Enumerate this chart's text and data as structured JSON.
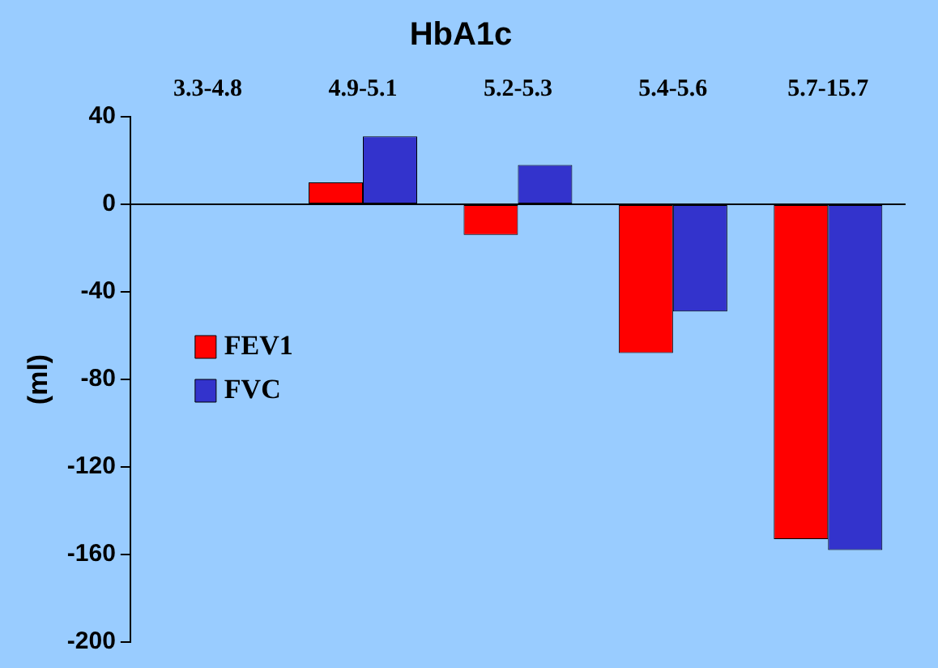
{
  "chart_data": {
    "type": "bar",
    "title": "HbA1c",
    "ylabel": "(ml)",
    "categories": [
      "3.3-4.8",
      "4.9-5.1",
      "5.2-5.3",
      "5.4-5.6",
      "5.7-15.7"
    ],
    "series": [
      {
        "name": "FEV1",
        "color": "#ff0000",
        "values": [
          0,
          10,
          -14,
          -68,
          -153
        ]
      },
      {
        "name": "FVC",
        "color": "#3333cc",
        "values": [
          0,
          31,
          18,
          -49,
          -158
        ]
      }
    ],
    "ylim": [
      -200,
      40
    ],
    "yticks": [
      -200,
      -160,
      -120,
      -80,
      -40,
      0,
      40
    ],
    "grid": false,
    "ref_lines": [
      {
        "axis": "y",
        "value": 0,
        "color": "#000000"
      }
    ],
    "legend": "left"
  }
}
